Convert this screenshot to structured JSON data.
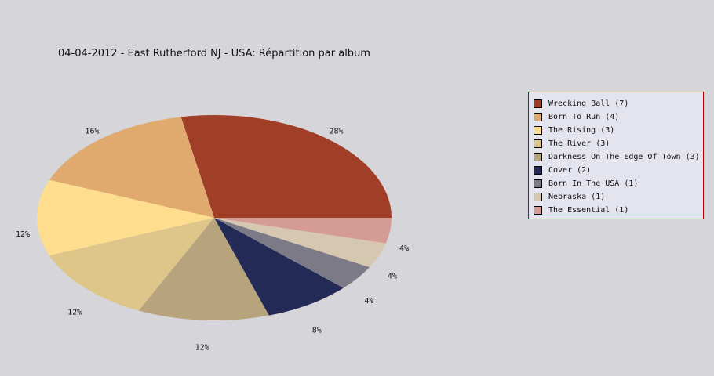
{
  "title": "04-04-2012 - East Rutherford NJ - USA:  Répartition par album",
  "chart_data": {
    "type": "pie",
    "title": "04-04-2012 - East Rutherford NJ - USA:  Répartition par album",
    "legend_position": "right",
    "slices": [
      {
        "label": "Wrecking Ball",
        "count": 7,
        "percent_label": "28%",
        "color": "#a03e28",
        "side_color": "#7a0a00"
      },
      {
        "label": "Born To Run",
        "count": 4,
        "percent_label": "16%",
        "color": "#e0aa6e",
        "side_color": "#b07a38"
      },
      {
        "label": "The Rising",
        "count": 3,
        "percent_label": "12%",
        "color": "#fedd8e",
        "side_color": "#d0b060"
      },
      {
        "label": "The River",
        "count": 3,
        "percent_label": "12%",
        "color": "#dec68a",
        "side_color": "#b09860"
      },
      {
        "label": "Darkness On The Edge Of Town",
        "count": 3,
        "percent_label": "12%",
        "color": "#b8a47c",
        "side_color": "#8c7850"
      },
      {
        "label": "Cover",
        "count": 2,
        "percent_label": "8%",
        "color": "#232a55",
        "side_color": "#10153a"
      },
      {
        "label": "Born In The USA",
        "count": 1,
        "percent_label": "4%",
        "color": "#7c7a86",
        "side_color": "#55535e"
      },
      {
        "label": "Nebraska",
        "count": 1,
        "percent_label": "4%",
        "color": "#d6c8b0",
        "side_color": "#a89a84"
      },
      {
        "label": "The Essential",
        "count": 1,
        "percent_label": "4%",
        "color": "#d49c94",
        "side_color": "#a0706a"
      }
    ],
    "legend_entries": [
      "Wrecking Ball (7)",
      "Born To Run (4)",
      "The Rising (3)",
      "The River (3)",
      "Darkness On The Edge Of Town (3)",
      "Cover (2)",
      "Born In The USA (1)",
      "Nebraska (1)",
      "The Essential (1)"
    ]
  }
}
